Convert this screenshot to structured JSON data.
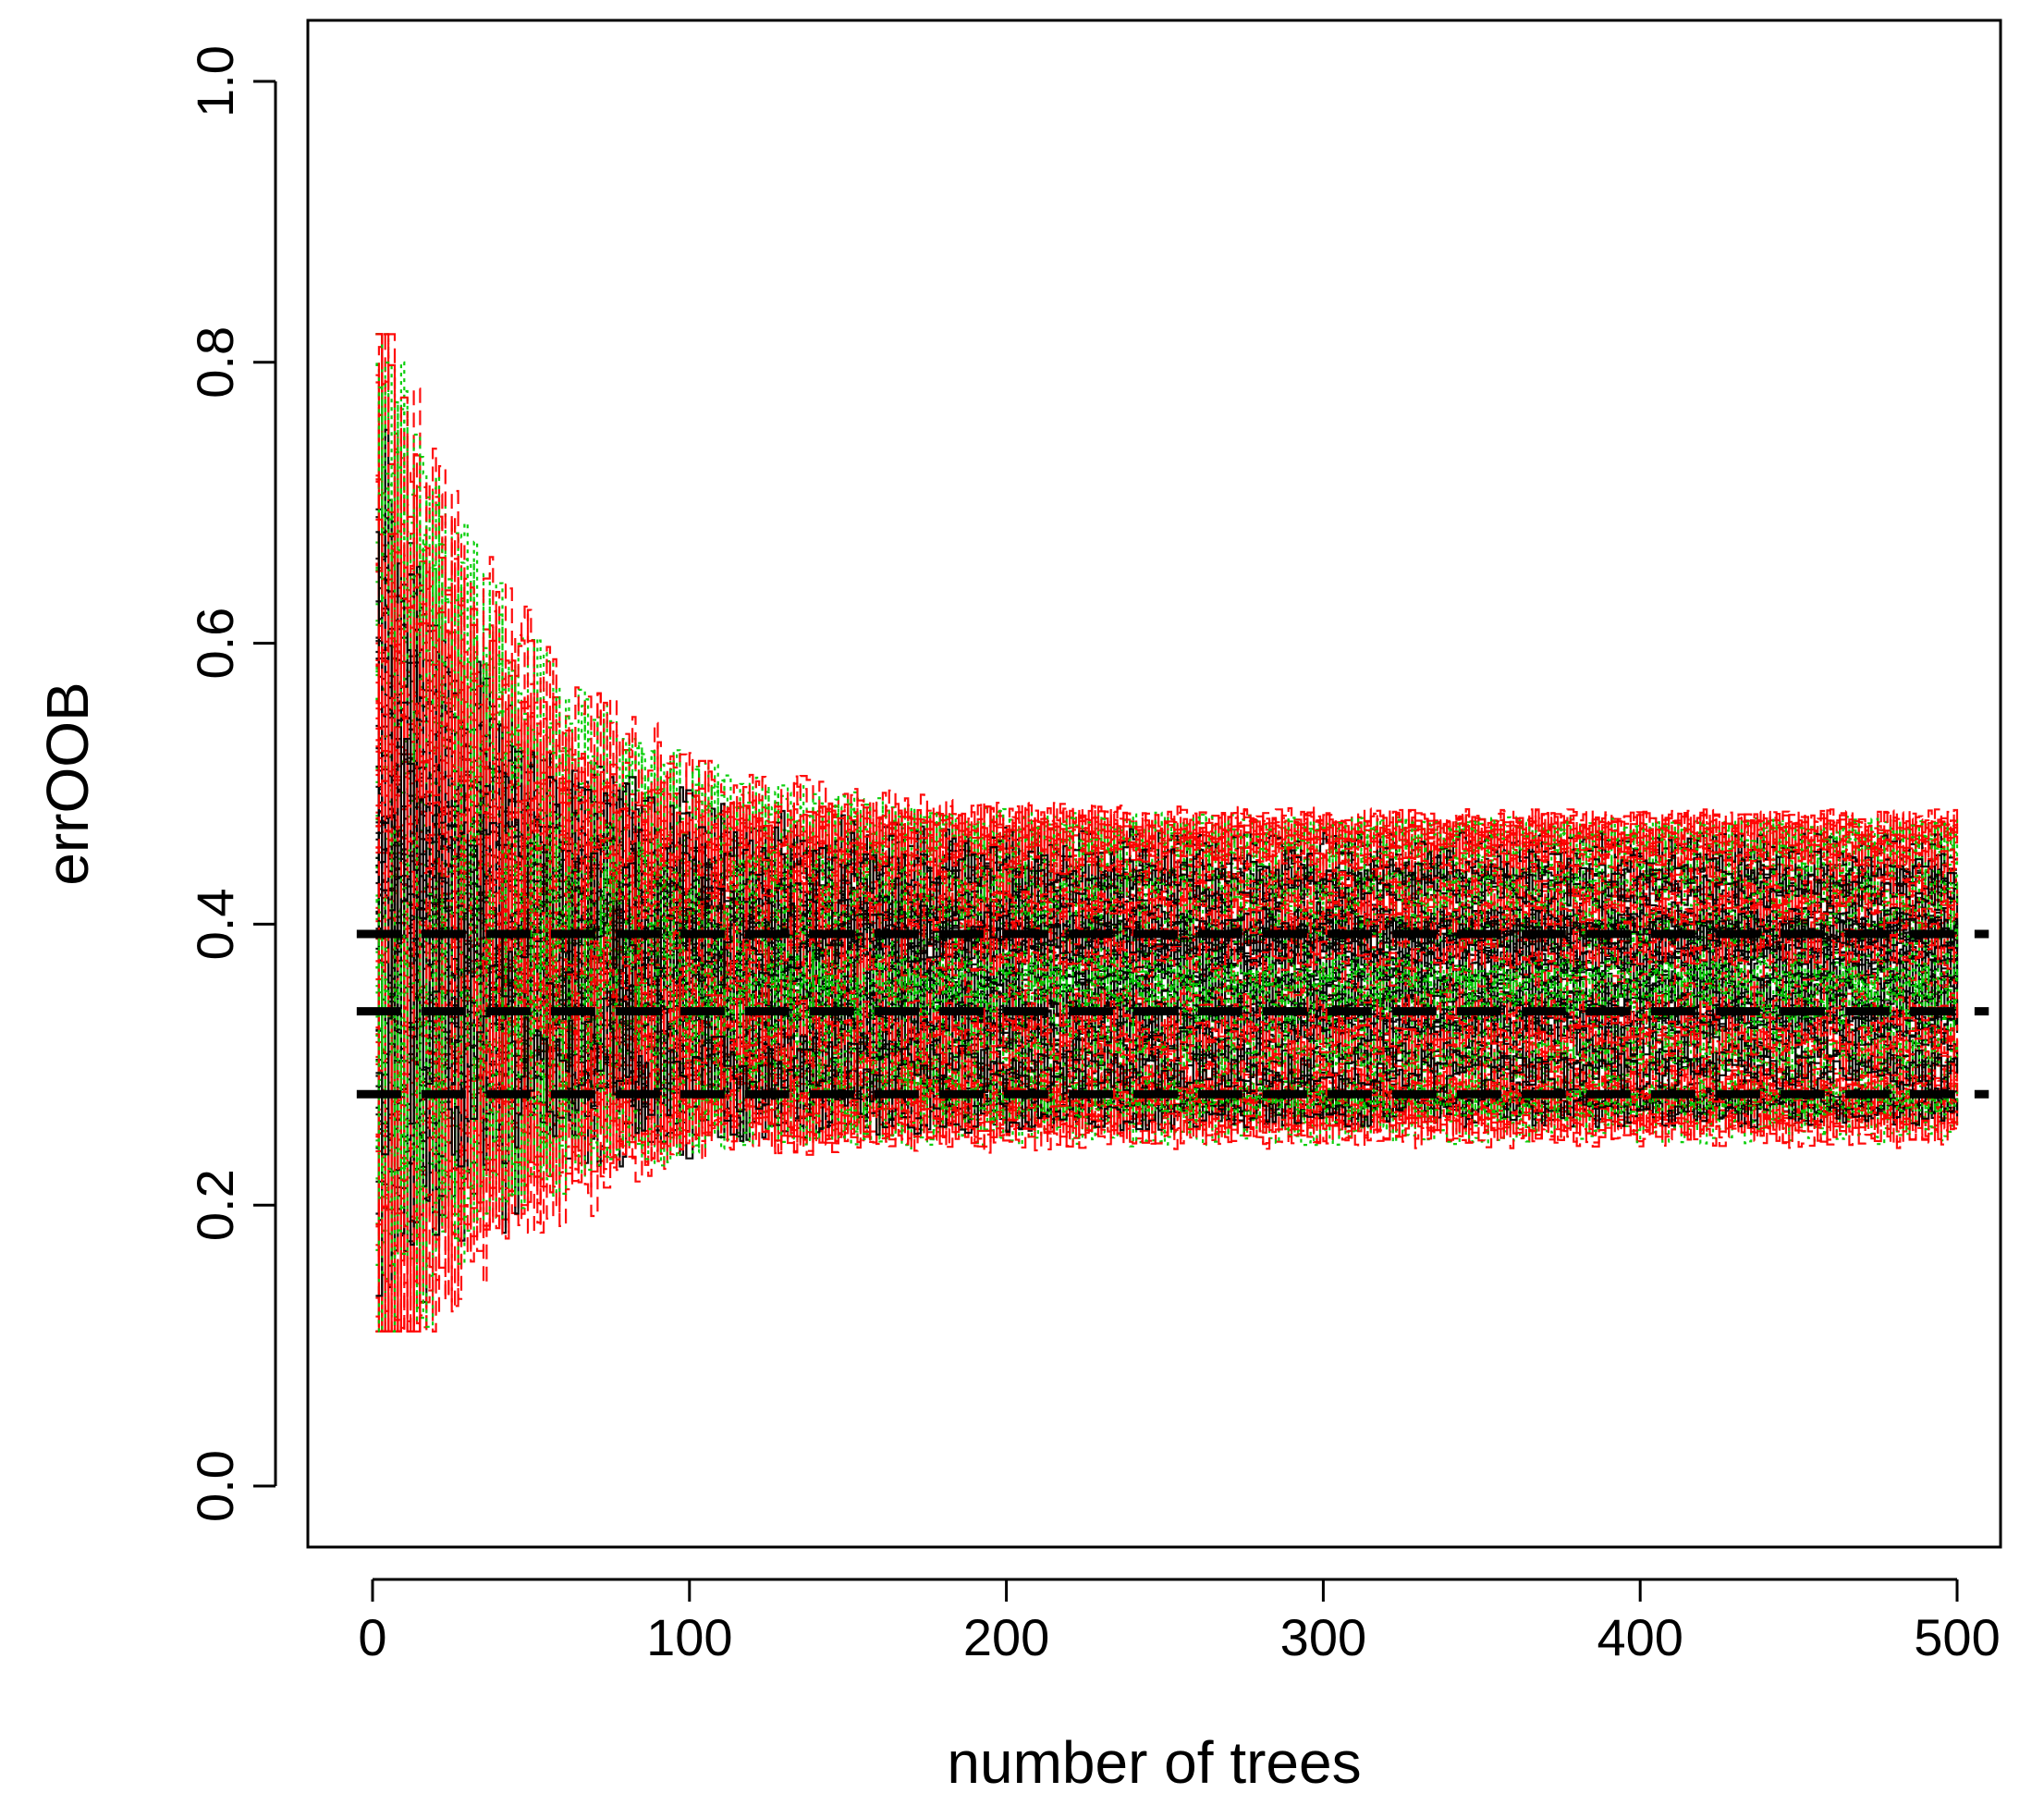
{
  "chart_data": {
    "type": "line",
    "title": "",
    "xlabel": "number of trees",
    "ylabel": "errOOB",
    "xlim": [
      -20,
      510
    ],
    "ylim": [
      -0.04,
      1.04
    ],
    "x_ticks": [
      0,
      100,
      200,
      300,
      400,
      500
    ],
    "y_ticks": [
      0.0,
      0.2,
      0.4,
      0.6,
      0.8,
      1.0
    ],
    "x_tick_labels": [
      "0",
      "100",
      "200",
      "300",
      "400",
      "500"
    ],
    "y_tick_labels": [
      "0.0",
      "0.2",
      "0.4",
      "0.6",
      "0.8",
      "1.0"
    ],
    "grid": false,
    "legend": "none",
    "colors": {
      "black": "#000000",
      "red": "#ff0000",
      "green": "#00cc00"
    },
    "series_groups": [
      {
        "color": "black",
        "style": "solid",
        "count": 40,
        "start_range": [
          0.25,
          0.62
        ],
        "converged_center": 0.36,
        "converged_spread": 0.11
      },
      {
        "color": "red",
        "style": "dashed",
        "count": 60,
        "start_range": [
          0.12,
          0.73
        ],
        "converged_center": 0.36,
        "converged_spread": 0.13
      },
      {
        "color": "green",
        "style": "dotted",
        "count": 45,
        "start_range": [
          0.14,
          0.81
        ],
        "converged_center": 0.36,
        "converged_spread": 0.13
      }
    ],
    "reference_lines": [
      {
        "y": 0.393,
        "style": "dashed",
        "color": "black"
      },
      {
        "y": 0.338,
        "style": "dashed",
        "color": "black"
      },
      {
        "y": 0.279,
        "style": "dashed",
        "color": "black"
      }
    ],
    "reference_x_range": [
      -5,
      510
    ]
  }
}
